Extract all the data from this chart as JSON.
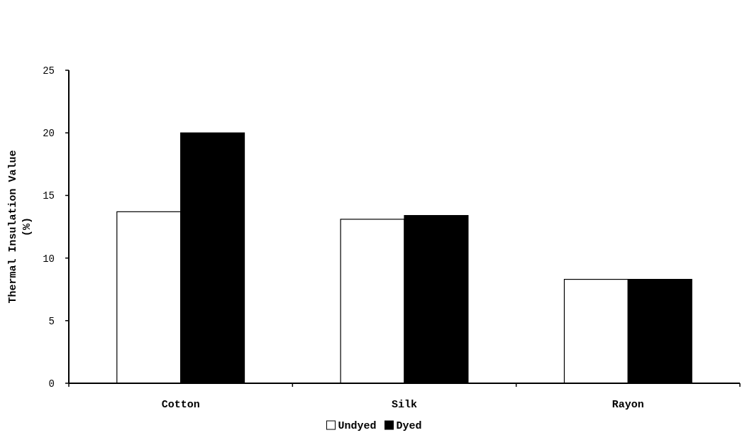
{
  "chart_data": {
    "type": "bar",
    "ylabel": "Thermal Insulation Value\n(%)",
    "categories": [
      "Cotton",
      "Silk",
      "Rayon"
    ],
    "series": [
      {
        "name": "Undyed",
        "color": "#ffffff",
        "values": [
          13.7,
          13.1,
          8.3
        ]
      },
      {
        "name": "Dyed",
        "color": "#000000",
        "values": [
          20.0,
          13.4,
          8.3
        ]
      }
    ],
    "ylim": [
      0,
      25
    ],
    "yticks": [
      0,
      5,
      10,
      15,
      20,
      25
    ],
    "grid": false,
    "legend": "bottom"
  }
}
